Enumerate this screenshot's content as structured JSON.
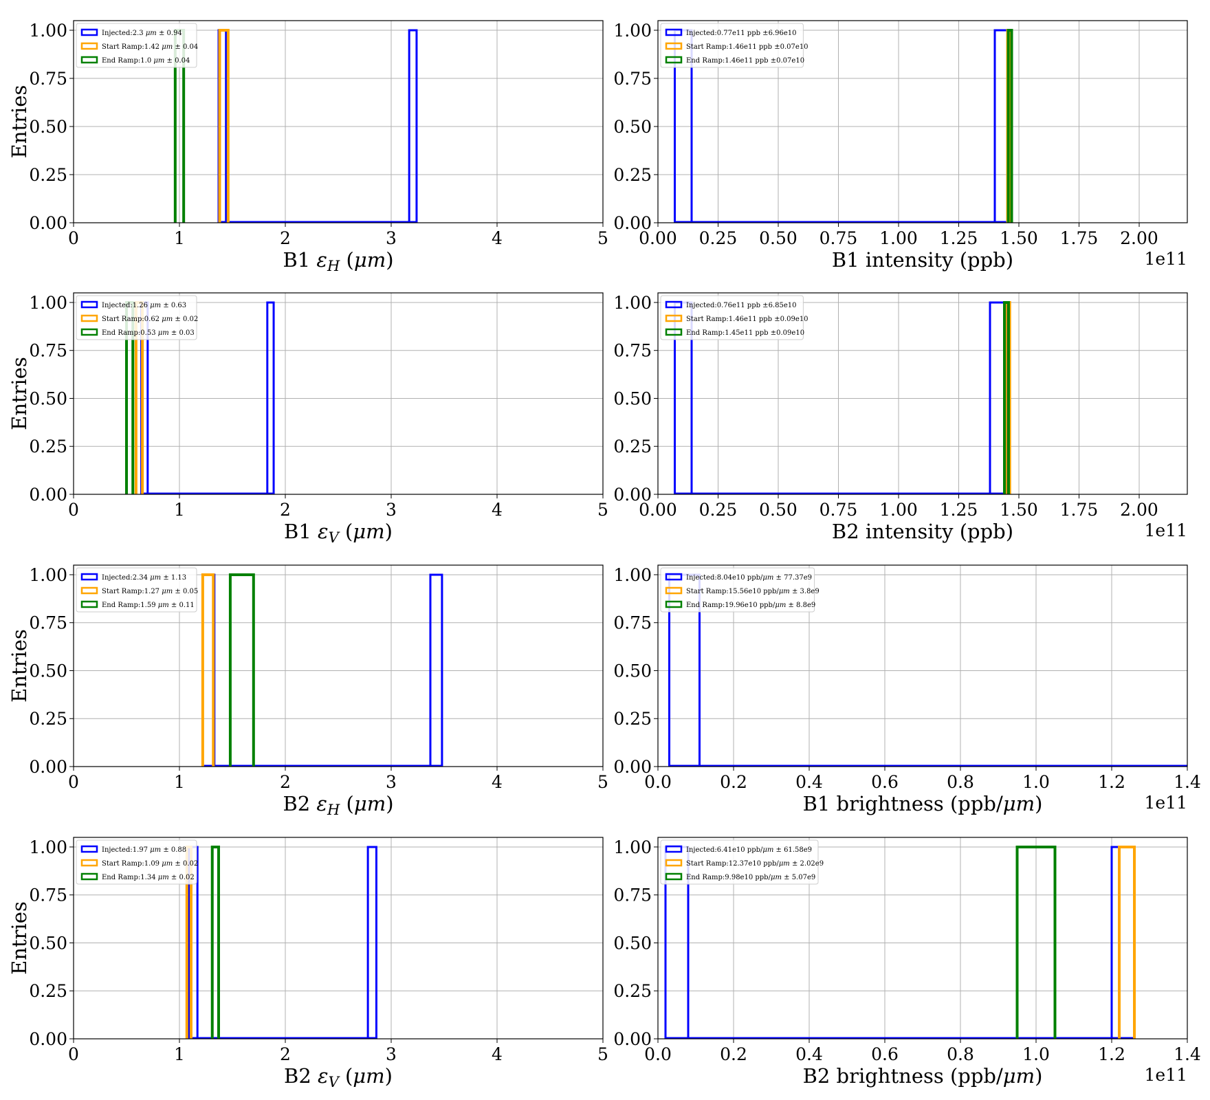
{
  "colors": {
    "injected": "#0000ff",
    "start_ramp": "#ffa500",
    "end_ramp": "#008000"
  },
  "chart_data": [
    {
      "type": "histogram",
      "panel": [
        0,
        0
      ],
      "xlabel": "B1 εH (μm)",
      "ylabel": "Entries",
      "offset": "",
      "xlim": [
        0,
        5
      ],
      "ylim": [
        0,
        1.05
      ],
      "xticks": [
        0,
        1,
        2,
        3,
        4,
        5
      ],
      "xtick_labels": [
        "0",
        "1",
        "2",
        "3",
        "4",
        "5"
      ],
      "yticks": [
        0,
        0.25,
        0.5,
        0.75,
        1.0
      ],
      "ytick_labels": [
        "0.00",
        "0.25",
        "0.50",
        "0.75",
        "1.00"
      ],
      "grid": true,
      "legend_position": "upper-left",
      "series": [
        {
          "name": "Injected:2.3 μm ± 0.94",
          "color": "#0000ff",
          "bins": [
            [
              1.37,
              1.44,
              1
            ],
            [
              3.17,
              3.24,
              1
            ]
          ],
          "range": [
            1.37,
            3.24
          ]
        },
        {
          "name": "Start Ramp:1.42 μm ± 0.04",
          "color": "#ffa500",
          "bins": [
            [
              1.38,
              1.46,
              1
            ]
          ]
        },
        {
          "name": "End Ramp:1.0 μm ± 0.04",
          "color": "#008000",
          "bins": [
            [
              0.96,
              1.04,
              1
            ]
          ]
        }
      ]
    },
    {
      "type": "histogram",
      "panel": [
        0,
        1
      ],
      "xlabel": "B1 intensity (ppb)",
      "ylabel": "",
      "offset": "1e11",
      "xlim": [
        0,
        2.2
      ],
      "ylim": [
        0,
        1.05
      ],
      "xticks": [
        0,
        0.25,
        0.5,
        0.75,
        1.0,
        1.25,
        1.5,
        1.75,
        2.0
      ],
      "xtick_labels": [
        "0.00",
        "0.25",
        "0.50",
        "0.75",
        "1.00",
        "1.25",
        "1.50",
        "1.75",
        "2.00"
      ],
      "yticks": [
        0,
        0.25,
        0.5,
        0.75,
        1.0
      ],
      "ytick_labels": [
        "0.00",
        "0.25",
        "0.50",
        "0.75",
        "1.00"
      ],
      "grid": true,
      "legend_position": "upper-left",
      "series": [
        {
          "name": "Injected:0.77e11 ppb ±6.96e10",
          "color": "#0000ff",
          "bins": [
            [
              0.07,
              0.14,
              1
            ],
            [
              1.4,
              1.47,
              1
            ]
          ],
          "range": [
            0.07,
            1.47
          ]
        },
        {
          "name": "Start Ramp:1.46e11 ppb ±0.07e10",
          "color": "#ffa500",
          "bins": [
            [
              1.453,
              1.467,
              1
            ]
          ]
        },
        {
          "name": "End Ramp:1.46e11 ppb ±0.07e10",
          "color": "#008000",
          "bins": [
            [
              1.456,
              1.47,
              1
            ]
          ]
        }
      ]
    },
    {
      "type": "histogram",
      "panel": [
        1,
        0
      ],
      "xlabel": "B1 εV (μm)",
      "ylabel": "Entries",
      "offset": "",
      "xlim": [
        0,
        5
      ],
      "ylim": [
        0,
        1.05
      ],
      "xticks": [
        0,
        1,
        2,
        3,
        4,
        5
      ],
      "xtick_labels": [
        "0",
        "1",
        "2",
        "3",
        "4",
        "5"
      ],
      "yticks": [
        0,
        0.25,
        0.5,
        0.75,
        1.0
      ],
      "ytick_labels": [
        "0.00",
        "0.25",
        "0.50",
        "0.75",
        "1.00"
      ],
      "grid": true,
      "legend_position": "upper-left",
      "series": [
        {
          "name": "Injected:1.26 μm ± 0.63",
          "color": "#0000ff",
          "bins": [
            [
              0.64,
              0.7,
              1
            ],
            [
              1.83,
              1.89,
              1
            ]
          ],
          "range": [
            0.64,
            1.89
          ]
        },
        {
          "name": "Start Ramp:0.62 μm ± 0.02",
          "color": "#ffa500",
          "bins": [
            [
              0.59,
              0.65,
              1
            ]
          ]
        },
        {
          "name": "End Ramp:0.53 μm ± 0.03",
          "color": "#008000",
          "bins": [
            [
              0.5,
              0.56,
              1
            ]
          ]
        }
      ]
    },
    {
      "type": "histogram",
      "panel": [
        1,
        1
      ],
      "xlabel": "B2 intensity (ppb)",
      "ylabel": "",
      "offset": "1e11",
      "xlim": [
        0,
        2.2
      ],
      "ylim": [
        0,
        1.05
      ],
      "xticks": [
        0,
        0.25,
        0.5,
        0.75,
        1.0,
        1.25,
        1.5,
        1.75,
        2.0
      ],
      "xtick_labels": [
        "0.00",
        "0.25",
        "0.50",
        "0.75",
        "1.00",
        "1.25",
        "1.50",
        "1.75",
        "2.00"
      ],
      "yticks": [
        0,
        0.25,
        0.5,
        0.75,
        1.0
      ],
      "ytick_labels": [
        "0.00",
        "0.25",
        "0.50",
        "0.75",
        "1.00"
      ],
      "grid": true,
      "legend_position": "upper-left",
      "series": [
        {
          "name": "Injected:0.76e11 ppb ±6.85e10",
          "color": "#0000ff",
          "bins": [
            [
              0.07,
              0.14,
              1
            ],
            [
              1.38,
              1.45,
              1
            ]
          ],
          "range": [
            0.07,
            1.45
          ]
        },
        {
          "name": "Start Ramp:1.46e11 ppb ±0.09e10",
          "color": "#ffa500",
          "bins": [
            [
              1.445,
              1.462,
              1
            ]
          ]
        },
        {
          "name": "End Ramp:1.45e11 ppb ±0.09e10",
          "color": "#008000",
          "bins": [
            [
              1.44,
              1.457,
              1
            ]
          ]
        }
      ]
    },
    {
      "type": "histogram",
      "panel": [
        2,
        0
      ],
      "xlabel": "B2 εH (μm)",
      "ylabel": "Entries",
      "offset": "",
      "xlim": [
        0,
        5
      ],
      "ylim": [
        0,
        1.05
      ],
      "xticks": [
        0,
        1,
        2,
        3,
        4,
        5
      ],
      "xtick_labels": [
        "0",
        "1",
        "2",
        "3",
        "4",
        "5"
      ],
      "yticks": [
        0,
        0.25,
        0.5,
        0.75,
        1.0
      ],
      "ytick_labels": [
        "0.00",
        "0.25",
        "0.50",
        "0.75",
        "1.00"
      ],
      "grid": true,
      "legend_position": "upper-left",
      "series": [
        {
          "name": "Injected:2.34 μm ± 1.13",
          "color": "#0000ff",
          "bins": [
            [
              1.22,
              1.33,
              1
            ],
            [
              3.37,
              3.48,
              1
            ]
          ],
          "range": [
            1.22,
            3.48
          ]
        },
        {
          "name": "Start Ramp:1.27 μm ± 0.05",
          "color": "#ffa500",
          "bins": [
            [
              1.22,
              1.32,
              1
            ]
          ]
        },
        {
          "name": "End Ramp:1.59 μm ± 0.11",
          "color": "#008000",
          "bins": [
            [
              1.48,
              1.7,
              1
            ]
          ]
        }
      ]
    },
    {
      "type": "histogram",
      "panel": [
        2,
        1
      ],
      "xlabel": "B1 brightness (ppb/μm)",
      "ylabel": "",
      "offset": "1e11",
      "xlim": [
        0,
        1.4
      ],
      "ylim": [
        0,
        1.05
      ],
      "xticks": [
        0,
        0.2,
        0.4,
        0.6,
        0.8,
        1.0,
        1.2,
        1.4
      ],
      "xtick_labels": [
        "0.0",
        "0.2",
        "0.4",
        "0.6",
        "0.8",
        "1.0",
        "1.2",
        "1.4"
      ],
      "yticks": [
        0,
        0.25,
        0.5,
        0.75,
        1.0
      ],
      "ytick_labels": [
        "0.00",
        "0.25",
        "0.50",
        "0.75",
        "1.00"
      ],
      "grid": true,
      "legend_position": "upper-left",
      "series": [
        {
          "name": "Injected:8.04e10 ppb/μm ± 77.37e9",
          "color": "#0000ff",
          "bins": [
            [
              0.03,
              0.11,
              1
            ]
          ],
          "range": [
            0.03,
            1.4
          ]
        },
        {
          "name": "Start Ramp:15.56e10 ppb/μm ± 3.8e9",
          "color": "#ffa500",
          "bins": []
        },
        {
          "name": "End Ramp:19.96e10 ppb/μm ± 8.8e9",
          "color": "#008000",
          "bins": []
        }
      ]
    },
    {
      "type": "histogram",
      "panel": [
        3,
        0
      ],
      "xlabel": "B2 εV (μm)",
      "ylabel": "Entries",
      "offset": "",
      "xlim": [
        0,
        5
      ],
      "ylim": [
        0,
        1.05
      ],
      "xticks": [
        0,
        1,
        2,
        3,
        4,
        5
      ],
      "xtick_labels": [
        "0",
        "1",
        "2",
        "3",
        "4",
        "5"
      ],
      "yticks": [
        0,
        0.25,
        0.5,
        0.75,
        1.0
      ],
      "ytick_labels": [
        "0.00",
        "0.25",
        "0.50",
        "0.75",
        "1.00"
      ],
      "grid": true,
      "legend_position": "upper-left",
      "series": [
        {
          "name": "Injected:1.97 μm ± 0.88",
          "color": "#0000ff",
          "bins": [
            [
              1.09,
              1.17,
              1
            ],
            [
              2.78,
              2.86,
              1
            ]
          ],
          "range": [
            1.09,
            2.86
          ]
        },
        {
          "name": "Start Ramp:1.09 μm ± 0.02",
          "color": "#ffa500",
          "bins": [
            [
              1.07,
              1.11,
              1
            ]
          ]
        },
        {
          "name": "End Ramp:1.34 μm ± 0.02",
          "color": "#008000",
          "bins": [
            [
              1.31,
              1.37,
              1
            ]
          ]
        }
      ]
    },
    {
      "type": "histogram",
      "panel": [
        3,
        1
      ],
      "xlabel": "B2 brightness (ppb/μm)",
      "ylabel": "",
      "offset": "1e11",
      "xlim": [
        0,
        1.4
      ],
      "ylim": [
        0,
        1.05
      ],
      "xticks": [
        0,
        0.2,
        0.4,
        0.6,
        0.8,
        1.0,
        1.2,
        1.4
      ],
      "xtick_labels": [
        "0.0",
        "0.2",
        "0.4",
        "0.6",
        "0.8",
        "1.0",
        "1.2",
        "1.4"
      ],
      "yticks": [
        0,
        0.25,
        0.5,
        0.75,
        1.0
      ],
      "ytick_labels": [
        "0.00",
        "0.25",
        "0.50",
        "0.75",
        "1.00"
      ],
      "grid": true,
      "legend_position": "upper-left",
      "series": [
        {
          "name": "Injected:6.41e10 ppb/μm ± 61.58e9",
          "color": "#0000ff",
          "bins": [
            [
              0.02,
              0.08,
              1
            ],
            [
              1.2,
              1.26,
              1
            ]
          ],
          "range": [
            0.02,
            1.26
          ]
        },
        {
          "name": "Start Ramp:12.37e10 ppb/μm ± 2.02e9",
          "color": "#ffa500",
          "bins": [
            [
              1.22,
              1.26,
              1
            ]
          ]
        },
        {
          "name": "End Ramp:9.98e10 ppb/μm ± 5.07e9",
          "color": "#008000",
          "bins": [
            [
              0.95,
              1.05,
              1
            ]
          ]
        }
      ]
    }
  ]
}
